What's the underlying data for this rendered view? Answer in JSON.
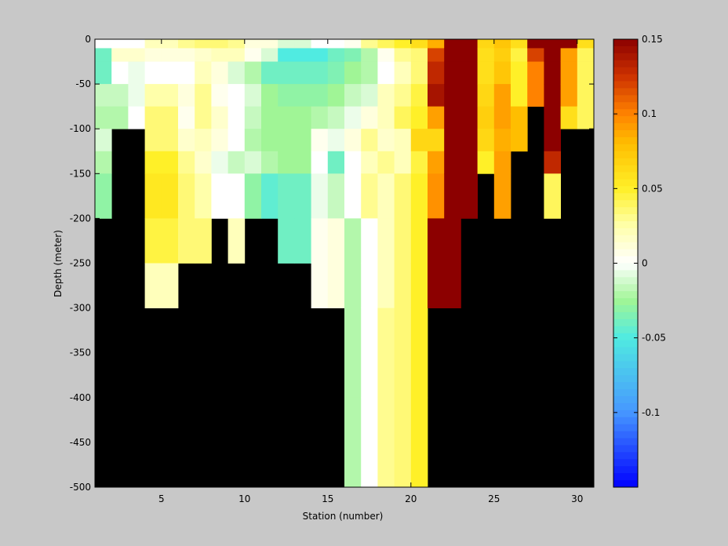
{
  "chart_data": {
    "type": "heatmap",
    "title": "",
    "xlabel": "Station (number)",
    "ylabel": "Depth (meter)",
    "xlim": [
      1,
      31
    ],
    "ylim": [
      -500,
      0
    ],
    "x_ticks": [
      5,
      10,
      15,
      20,
      25,
      30
    ],
    "y_ticks": [
      0,
      -50,
      -100,
      -150,
      -200,
      -250,
      -300,
      -350,
      -400,
      -450,
      -500
    ],
    "colorbar": {
      "colormap": "jet-with-white-center",
      "range": [
        -0.15,
        0.15
      ],
      "ticks": [
        0.15,
        0.1,
        0.05,
        0,
        -0.05,
        -0.1
      ],
      "tick_labels": [
        "0.15",
        "0.1",
        "0.05",
        "0",
        "-0.05",
        "-0.1"
      ]
    },
    "no_data_color": "#000000",
    "depth_bins": [
      0,
      -10,
      -25,
      -50,
      -75,
      -100,
      -125,
      -150,
      -200,
      -250,
      -300,
      -400,
      -500
    ],
    "stations": [
      {
        "station": 1,
        "values": [
          0.0,
          -0.04,
          -0.04,
          -0.015,
          -0.02,
          -0.01,
          -0.02,
          -0.03,
          null,
          null,
          null,
          null
        ]
      },
      {
        "station": 2,
        "values": [
          0.0,
          0.015,
          0.0,
          -0.015,
          -0.02,
          null,
          null,
          null,
          null,
          null,
          null,
          null
        ]
      },
      {
        "station": 3,
        "values": [
          0.0,
          0.015,
          -0.005,
          -0.005,
          0.0,
          null,
          null,
          null,
          null,
          null,
          null,
          null
        ]
      },
      {
        "station": 4,
        "values": [
          0.02,
          0.01,
          0.0,
          0.025,
          0.035,
          0.035,
          0.05,
          0.055,
          0.045,
          0.02,
          null,
          null
        ]
      },
      {
        "station": 5,
        "values": [
          0.02,
          0.01,
          0.0,
          0.025,
          0.035,
          0.035,
          0.05,
          0.055,
          0.045,
          0.02,
          null,
          null
        ]
      },
      {
        "station": 6,
        "values": [
          0.03,
          0.01,
          0.0,
          0.01,
          0.005,
          0.015,
          0.03,
          0.035,
          0.035,
          null,
          null,
          null
        ]
      },
      {
        "station": 7,
        "values": [
          0.035,
          0.015,
          0.02,
          0.03,
          0.03,
          0.02,
          0.015,
          0.025,
          0.035,
          null,
          null,
          null
        ]
      },
      {
        "station": 8,
        "values": [
          0.035,
          0.02,
          0.01,
          0.005,
          0.015,
          0.01,
          -0.005,
          0.0,
          null,
          null,
          null,
          null
        ]
      },
      {
        "station": 9,
        "values": [
          0.03,
          0.02,
          -0.01,
          0.0,
          0.0,
          0.0,
          -0.015,
          0.0,
          0.02,
          null,
          null,
          null
        ]
      },
      {
        "station": 10,
        "values": [
          0.01,
          0.005,
          -0.02,
          -0.01,
          -0.015,
          -0.02,
          -0.01,
          -0.03,
          null,
          null,
          null,
          null
        ]
      },
      {
        "station": 11,
        "values": [
          0.01,
          -0.01,
          -0.04,
          -0.025,
          -0.025,
          -0.025,
          -0.02,
          -0.045,
          null,
          null,
          null,
          null
        ]
      },
      {
        "station": 12,
        "values": [
          -0.01,
          -0.05,
          -0.04,
          -0.03,
          -0.025,
          -0.025,
          -0.025,
          -0.04,
          -0.04,
          null,
          null,
          null
        ]
      },
      {
        "station": 13,
        "values": [
          -0.01,
          -0.05,
          -0.04,
          -0.03,
          -0.025,
          -0.025,
          -0.025,
          -0.04,
          -0.04,
          null,
          null,
          null
        ]
      },
      {
        "station": 14,
        "values": [
          0.0,
          -0.05,
          -0.04,
          -0.03,
          -0.02,
          0.005,
          0.0,
          -0.005,
          0.005,
          0.005,
          null,
          null
        ]
      },
      {
        "station": 15,
        "values": [
          0.0,
          -0.04,
          -0.035,
          -0.025,
          -0.015,
          -0.005,
          -0.04,
          -0.015,
          0.01,
          0.01,
          null,
          null
        ]
      },
      {
        "station": 16,
        "values": [
          0.005,
          -0.035,
          -0.025,
          -0.015,
          -0.005,
          0.01,
          0.0,
          0.0,
          -0.02,
          -0.02,
          -0.02,
          -0.02
        ]
      },
      {
        "station": 17,
        "values": [
          0.03,
          -0.02,
          -0.02,
          -0.01,
          0.01,
          0.03,
          0.02,
          0.03,
          0.0,
          0.0,
          0.0,
          0.0
        ]
      },
      {
        "station": 18,
        "values": [
          0.04,
          0.005,
          0.0,
          0.02,
          0.02,
          0.015,
          0.03,
          0.02,
          0.02,
          0.02,
          0.03,
          0.03
        ]
      },
      {
        "station": 19,
        "values": [
          0.05,
          0.03,
          0.02,
          0.03,
          0.04,
          0.02,
          0.02,
          0.035,
          0.035,
          0.035,
          0.035,
          0.035
        ]
      },
      {
        "station": 20,
        "values": [
          0.06,
          0.035,
          0.035,
          0.045,
          0.05,
          0.065,
          0.045,
          0.05,
          0.05,
          0.05,
          0.05,
          0.05
        ]
      },
      {
        "station": 21,
        "values": [
          0.085,
          0.12,
          0.13,
          0.14,
          0.09,
          0.065,
          0.09,
          0.095,
          0.15,
          0.15,
          null,
          null
        ]
      },
      {
        "station": 22,
        "values": [
          0.15,
          0.15,
          0.15,
          0.15,
          0.15,
          0.15,
          0.15,
          0.15,
          0.15,
          0.15,
          null,
          null
        ]
      },
      {
        "station": 23,
        "values": [
          0.15,
          0.15,
          0.15,
          0.15,
          0.15,
          0.15,
          0.15,
          0.15,
          null,
          null,
          null,
          null
        ]
      },
      {
        "station": 24,
        "values": [
          0.065,
          0.06,
          0.06,
          0.065,
          0.07,
          0.065,
          0.05,
          null,
          null,
          null,
          null,
          null
        ]
      },
      {
        "station": 25,
        "values": [
          0.075,
          0.07,
          0.075,
          0.09,
          0.09,
          0.085,
          0.09,
          0.09,
          null,
          null,
          null,
          null
        ]
      },
      {
        "station": 26,
        "values": [
          0.06,
          0.045,
          0.05,
          0.05,
          0.08,
          0.08,
          null,
          null,
          null,
          null,
          null,
          null
        ]
      },
      {
        "station": 27,
        "values": [
          0.15,
          0.12,
          0.1,
          0.1,
          null,
          null,
          null,
          null,
          null,
          null,
          null,
          null
        ]
      },
      {
        "station": 28,
        "values": [
          0.15,
          0.15,
          0.15,
          0.15,
          0.15,
          0.15,
          0.13,
          0.04,
          null,
          null,
          null,
          null
        ]
      },
      {
        "station": 29,
        "values": [
          0.15,
          0.09,
          0.09,
          0.09,
          0.06,
          null,
          null,
          null,
          null,
          null,
          null,
          null
        ]
      },
      {
        "station": 30,
        "values": [
          0.06,
          0.04,
          0.04,
          0.04,
          0.04,
          null,
          null,
          null,
          null,
          null,
          null,
          null
        ]
      }
    ]
  }
}
